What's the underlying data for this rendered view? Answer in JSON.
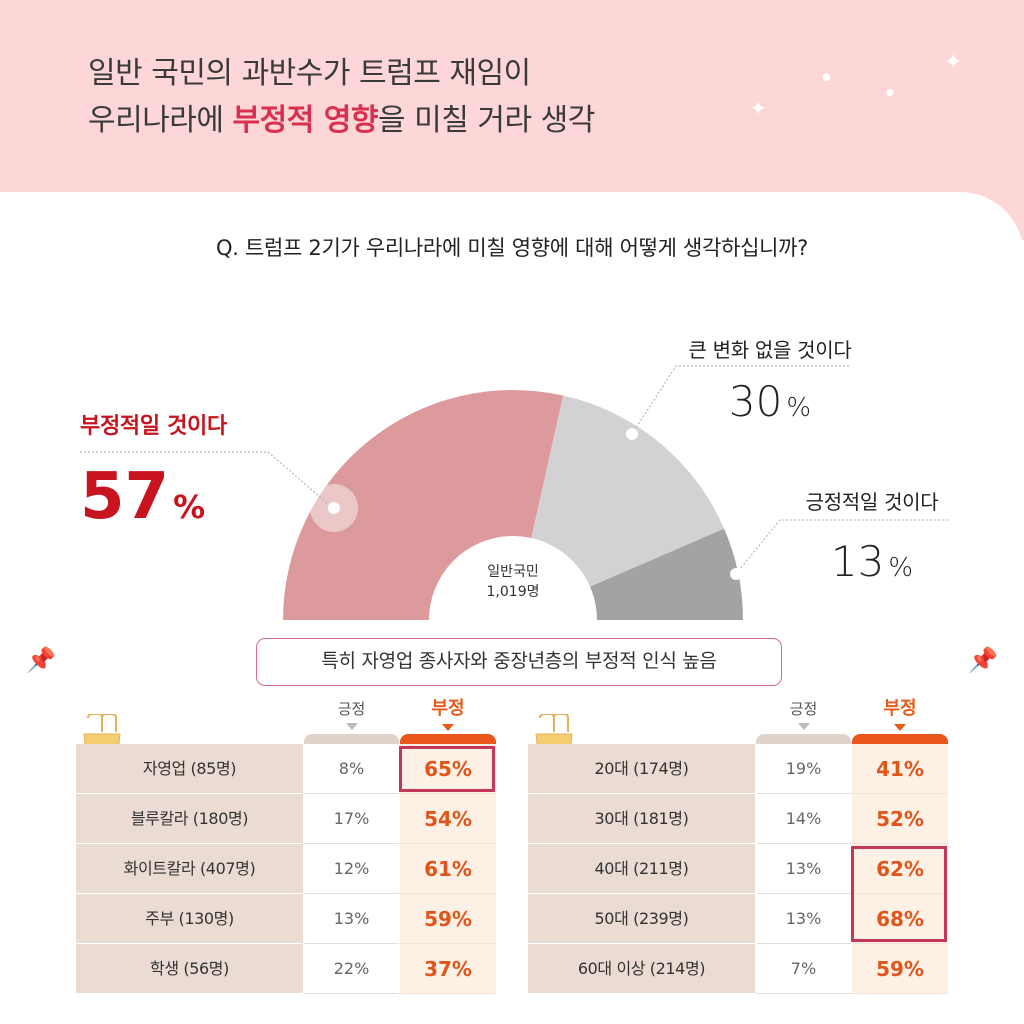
{
  "headline": {
    "line1": "일반 국민의 과반수가 트럼프 재임이",
    "line2_pre": "우리나라에 ",
    "line2_highlight": "부정적 영향",
    "line2_post": "을 미칠 거라 생각"
  },
  "question": "Q. 트럼프 2기가 우리나라에 미칠 영향에 대해 어떻게 생각하십니까?",
  "chart_data": [
    {
      "type": "pie",
      "center_label_line1": "일반국민",
      "center_label_line2": "1,019명",
      "unit": "%",
      "slices": [
        {
          "label": "부정적일 것이다",
          "value": 57,
          "color": "#dd9a9c"
        },
        {
          "label": "큰 변화 없을 것이다",
          "value": 30,
          "color": "#d3d1d2"
        },
        {
          "label": "긍정적일 것이다",
          "value": 13,
          "color": "#a5a2a3"
        }
      ]
    },
    {
      "type": "table",
      "columns": [
        "긍정",
        "부정"
      ],
      "rows": [
        {
          "label": "자영업 (85명)",
          "positive": "8%",
          "negative": "65%",
          "highlight": true
        },
        {
          "label": "블루칼라 (180명)",
          "positive": "17%",
          "negative": "54%",
          "highlight": false
        },
        {
          "label": "화이트칼라 (407명)",
          "positive": "12%",
          "negative": "61%",
          "highlight": false
        },
        {
          "label": "주부 (130명)",
          "positive": "13%",
          "negative": "59%",
          "highlight": false
        },
        {
          "label": "학생 (56명)",
          "positive": "22%",
          "negative": "37%",
          "highlight": false
        }
      ]
    },
    {
      "type": "table",
      "columns": [
        "긍정",
        "부정"
      ],
      "rows": [
        {
          "label": "20대 (174명)",
          "positive": "19%",
          "negative": "41%",
          "highlight": false
        },
        {
          "label": "30대 (181명)",
          "positive": "14%",
          "negative": "52%",
          "highlight": false
        },
        {
          "label": "40대 (211명)",
          "positive": "13%",
          "negative": "62%",
          "highlight": true
        },
        {
          "label": "50대 (239명)",
          "positive": "13%",
          "negative": "68%",
          "highlight": true
        },
        {
          "label": "60대 이상 (214명)",
          "positive": "7%",
          "negative": "59%",
          "highlight": false
        }
      ]
    }
  ],
  "subtitle_pill": "특히 자영업 종사자와 중장년층의 부정적 인식 높음",
  "icons": {
    "pin": "pushpin-icon",
    "clip": "binder-clip-icon",
    "sparkle": "sparkle-icon"
  }
}
